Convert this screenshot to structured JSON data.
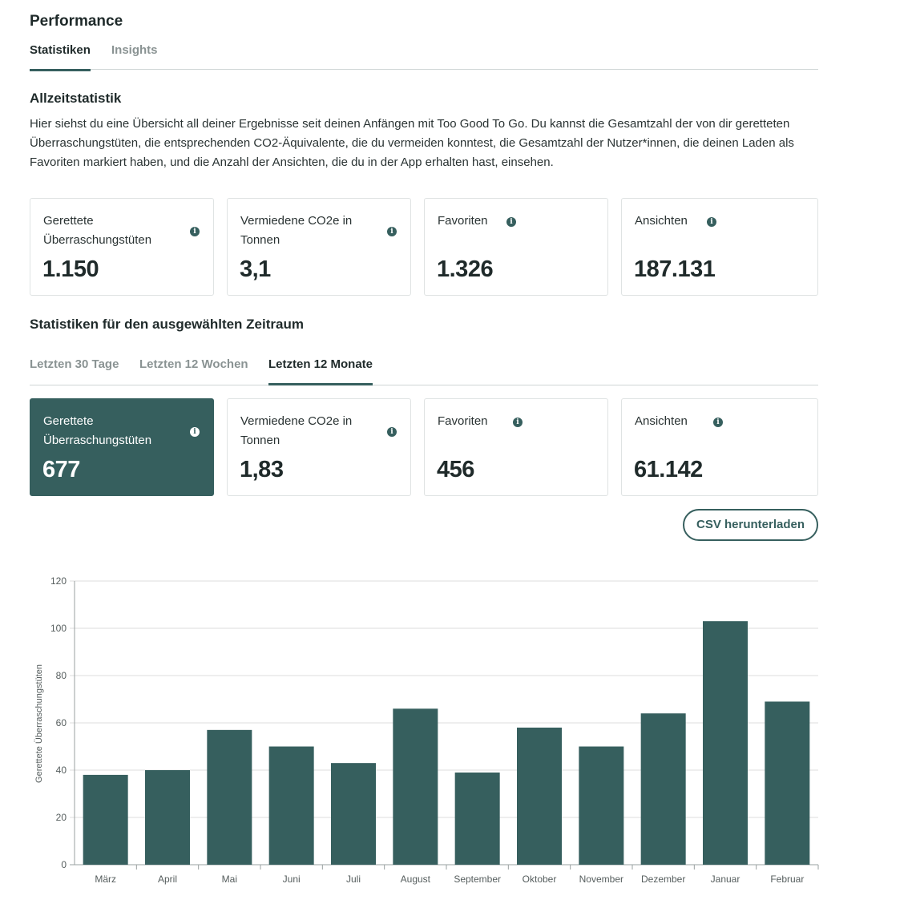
{
  "header": {
    "title": "Performance"
  },
  "tabs": [
    {
      "label": "Statistiken",
      "active": true
    },
    {
      "label": "Insights",
      "active": false
    }
  ],
  "alltime": {
    "title": "Allzeitstatistik",
    "description": "Hier siehst du eine Übersicht all deiner Ergebnisse seit deinen Anfängen mit Too Good To Go. Du kannst die Gesamtzahl der von dir geretteten Überraschungstüten, die entsprechenden CO2-Äquivalente, die du vermeiden konntest, die Gesamtzahl der Nutzer*innen, die deinen Laden als Favoriten markiert haben, und die Anzahl der Ansichten, die du in der App erhalten hast, einsehen.",
    "cards": [
      {
        "label": "Gerettete Überraschungstüten",
        "value": "1.150",
        "info_icon": "info-icon"
      },
      {
        "label": "Vermiedene CO2e in Tonnen",
        "value": "3,1",
        "info_icon": "info-icon"
      },
      {
        "label": "Favoriten",
        "value": "1.326",
        "info_icon": "info-icon"
      },
      {
        "label": "Ansichten",
        "value": "187.131",
        "info_icon": "info-icon"
      }
    ]
  },
  "period": {
    "title": "Statistiken für den ausgewählten Zeitraum",
    "tabs": [
      {
        "label": "Letzten 30 Tage",
        "active": false
      },
      {
        "label": "Letzten 12 Wochen",
        "active": false
      },
      {
        "label": "Letzten 12 Monate",
        "active": true
      }
    ],
    "cards": [
      {
        "label": "Gerettete Überraschungstüten",
        "value": "677",
        "selected": true
      },
      {
        "label": "Vermiedene CO2e in Tonnen",
        "value": "1,83",
        "selected": false
      },
      {
        "label": "Favoriten",
        "value": "456",
        "selected": false
      },
      {
        "label": "Ansichten",
        "value": "61.142",
        "selected": false
      }
    ],
    "csv_button": "CSV herunterladen"
  },
  "colors": {
    "accent": "#365f5e",
    "grid": "#dcdcdc",
    "text": "#1f2a2a"
  },
  "chart_data": {
    "type": "bar",
    "categories": [
      "März",
      "April",
      "Mai",
      "Juni",
      "Juli",
      "August",
      "September",
      "Oktober",
      "November",
      "Dezember",
      "Januar",
      "Februar"
    ],
    "values": [
      38,
      40,
      57,
      50,
      43,
      66,
      39,
      58,
      50,
      64,
      103,
      69
    ],
    "ylabel": "Gerettete Überraschungstüten",
    "xlabel": "",
    "ylim": [
      0,
      120
    ],
    "yticks": [
      0,
      20,
      40,
      60,
      80,
      100,
      120
    ],
    "grid": true,
    "bar_color": "#365f5e"
  }
}
